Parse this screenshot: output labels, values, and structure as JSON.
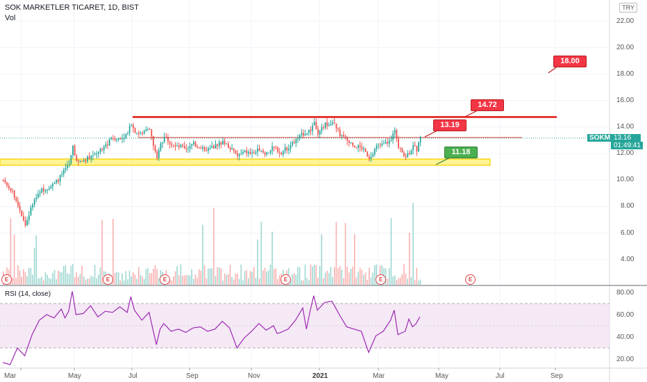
{
  "header": {
    "symbol_title": "SOK MARKETLER TICARET, 1D, BIST",
    "vol_label": "Vol",
    "currency_button": "TRY"
  },
  "price_axis": {
    "ticks": [
      "22.00",
      "20.00",
      "18.00",
      "16.00",
      "14.00",
      "12.00",
      "10.00",
      "8.00",
      "6.00",
      "4.00"
    ],
    "current_symbol": "SOKM",
    "current_price": "13.16",
    "countdown": "01:49:41"
  },
  "rsi_axis": {
    "label": "RSI (14, close)",
    "ticks": [
      "80.00",
      "60.00",
      "40.00",
      "20.00"
    ]
  },
  "time_axis": {
    "labels": [
      "Mar",
      "May",
      "Jul",
      "Sep",
      "Nov",
      "2021",
      "Mar",
      "May",
      "Jul",
      "Sep"
    ]
  },
  "annotations": {
    "target_high": "18.00",
    "resistance_top": "14.72",
    "resistance_mid": "13.19",
    "support": "11.18"
  },
  "earnings_badge_text": "E",
  "colors": {
    "up": "#26a69a",
    "down": "#ef5350",
    "resistance_line": "#e53935",
    "support_band": "#ffeb3b",
    "rsi_line": "#9c27b0",
    "rsi_band": "#f3e5f5",
    "tag_red": "#f23645",
    "tag_green": "#4caf50"
  },
  "chart_data": [
    {
      "type": "candlestick",
      "title": "SOK MARKETLER TICARET, 1D, BIST",
      "x": [
        "Mar",
        "May",
        "Jul",
        "Sep",
        "Nov",
        "2021",
        "Mar",
        "May",
        "Jul",
        "Sep"
      ],
      "ylim": [
        2.5,
        23
      ],
      "y_ticks": [
        22,
        20,
        18,
        16,
        14,
        12,
        10,
        8,
        6,
        4
      ],
      "series": [
        {
          "name": "SOKM",
          "values": [
            [
              0,
              10.0
            ],
            [
              4,
              9.3
            ],
            [
              8,
              8.2
            ],
            [
              12,
              6.6
            ],
            [
              16,
              8.2
            ],
            [
              20,
              9.2
            ],
            [
              24,
              9.4
            ],
            [
              28,
              9.7
            ],
            [
              32,
              10.4
            ],
            [
              36,
              11.2
            ],
            [
              38,
              12.6
            ],
            [
              40,
              11.3
            ],
            [
              44,
              11.5
            ],
            [
              48,
              11.8
            ],
            [
              52,
              12.2
            ],
            [
              56,
              12.6
            ],
            [
              60,
              13.2
            ],
            [
              64,
              13.1
            ],
            [
              68,
              13.5
            ],
            [
              70,
              14.3
            ],
            [
              72,
              13.7
            ],
            [
              76,
              13.4
            ],
            [
              80,
              14.0
            ],
            [
              82,
              12.6
            ],
            [
              84,
              11.5
            ],
            [
              86,
              12.8
            ],
            [
              88,
              13.2
            ],
            [
              92,
              12.8
            ],
            [
              96,
              12.6
            ],
            [
              100,
              12.4
            ],
            [
              104,
              12.7
            ],
            [
              108,
              12.5
            ],
            [
              112,
              12.3
            ],
            [
              116,
              12.6
            ],
            [
              120,
              12.9
            ],
            [
              124,
              12.4
            ],
            [
              128,
              11.8
            ],
            [
              132,
              12.1
            ],
            [
              136,
              12.0
            ],
            [
              140,
              12.3
            ],
            [
              144,
              12.0
            ],
            [
              148,
              12.6
            ],
            [
              150,
              12.2
            ],
            [
              152,
              12.1
            ],
            [
              156,
              12.5
            ],
            [
              160,
              13.0
            ],
            [
              164,
              13.5
            ],
            [
              168,
              13.8
            ],
            [
              170,
              14.4
            ],
            [
              172,
              13.6
            ],
            [
              176,
              14.2
            ],
            [
              180,
              14.4
            ],
            [
              184,
              13.4
            ],
            [
              188,
              13.0
            ],
            [
              192,
              12.6
            ],
            [
              196,
              12.4
            ],
            [
              200,
              11.7
            ],
            [
              204,
              12.5
            ],
            [
              208,
              12.7
            ],
            [
              212,
              13.0
            ],
            [
              214,
              13.9
            ],
            [
              216,
              12.4
            ],
            [
              220,
              11.8
            ],
            [
              222,
              12.1
            ],
            [
              224,
              12.7
            ],
            [
              226,
              12.3
            ],
            [
              228,
              13.16
            ]
          ]
        }
      ]
    },
    {
      "type": "bar",
      "title": "Vol",
      "series": [
        {
          "name": "Vol",
          "values": []
        }
      ]
    },
    {
      "type": "line",
      "title": "RSI (14, close)",
      "ylim": [
        14,
        84
      ],
      "y_ticks": [
        80,
        60,
        40,
        20
      ],
      "bands": [
        30,
        70
      ],
      "series": [
        {
          "name": "RSI",
          "values": [
            [
              0,
              17
            ],
            [
              4,
              15
            ],
            [
              8,
              30
            ],
            [
              12,
              23
            ],
            [
              16,
              42
            ],
            [
              20,
              55
            ],
            [
              24,
              60
            ],
            [
              28,
              57
            ],
            [
              32,
              65
            ],
            [
              34,
              57
            ],
            [
              36,
              63
            ],
            [
              38,
              81
            ],
            [
              40,
              60
            ],
            [
              44,
              61
            ],
            [
              48,
              68
            ],
            [
              52,
              58
            ],
            [
              56,
              63
            ],
            [
              60,
              62
            ],
            [
              64,
              67
            ],
            [
              68,
              62
            ],
            [
              70,
              76
            ],
            [
              72,
              64
            ],
            [
              76,
              55
            ],
            [
              80,
              62
            ],
            [
              82,
              47
            ],
            [
              84,
              33
            ],
            [
              86,
              47
            ],
            [
              88,
              52
            ],
            [
              92,
              45
            ],
            [
              96,
              47
            ],
            [
              100,
              44
            ],
            [
              104,
              48
            ],
            [
              108,
              49
            ],
            [
              112,
              45
            ],
            [
              116,
              47
            ],
            [
              120,
              54
            ],
            [
              124,
              48
            ],
            [
              128,
              30
            ],
            [
              132,
              39
            ],
            [
              136,
              45
            ],
            [
              140,
              52
            ],
            [
              144,
              46
            ],
            [
              148,
              50
            ],
            [
              150,
              43
            ],
            [
              152,
              44
            ],
            [
              156,
              47
            ],
            [
              160,
              55
            ],
            [
              164,
              66
            ],
            [
              166,
              47
            ],
            [
              168,
              63
            ],
            [
              170,
              77
            ],
            [
              172,
              64
            ],
            [
              176,
              71
            ],
            [
              180,
              72
            ],
            [
              184,
              60
            ],
            [
              188,
              49
            ],
            [
              192,
              47
            ],
            [
              196,
              45
            ],
            [
              200,
              26
            ],
            [
              204,
              41
            ],
            [
              208,
              45
            ],
            [
              212,
              55
            ],
            [
              214,
              64
            ],
            [
              216,
              42
            ],
            [
              220,
              45
            ],
            [
              222,
              56
            ],
            [
              224,
              49
            ],
            [
              226,
              52
            ],
            [
              228,
              58
            ]
          ]
        }
      ]
    }
  ]
}
